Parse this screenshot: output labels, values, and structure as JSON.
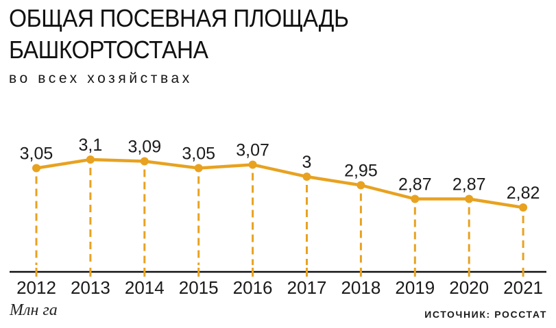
{
  "header": {
    "title_line1": "ОБЩАЯ ПОСЕВНАЯ ПЛОЩАДЬ",
    "title_line2": "БАШКОРТОСТАНА",
    "subtitle": "во всех хозяйствах"
  },
  "footer": {
    "unit_label": "Млн га",
    "source_label": "ИСТОЧНИК: РОССТАТ"
  },
  "colors": {
    "accent": "#E8A220",
    "text": "#1a1a1a",
    "axis": "#111111",
    "background": "#ffffff"
  },
  "chart_data": {
    "type": "line",
    "title": "ОБЩАЯ ПОСЕВНАЯ ПЛОЩАДЬ БАШКОРТОСТАНА",
    "subtitle": "во всех хозяйствах",
    "ylabel": "Млн га",
    "source": "ИСТОЧНИК: РОССТАТ",
    "categories": [
      "2012",
      "2013",
      "2014",
      "2015",
      "2016",
      "2017",
      "2018",
      "2019",
      "2020",
      "2021"
    ],
    "values": [
      3.05,
      3.1,
      3.09,
      3.05,
      3.07,
      3.0,
      2.95,
      2.87,
      2.87,
      2.82
    ],
    "point_labels": [
      "3,05",
      "3,1",
      "3,09",
      "3,05",
      "3,07",
      "3",
      "2,95",
      "2,87",
      "2,87",
      "2,82"
    ],
    "ylim": [
      2.6,
      3.2
    ],
    "grid": false,
    "legend_position": "none",
    "marker": "circle",
    "dashed_drop_lines": true,
    "line_color": "#E8A220",
    "label_color": "#1a1a1a"
  }
}
